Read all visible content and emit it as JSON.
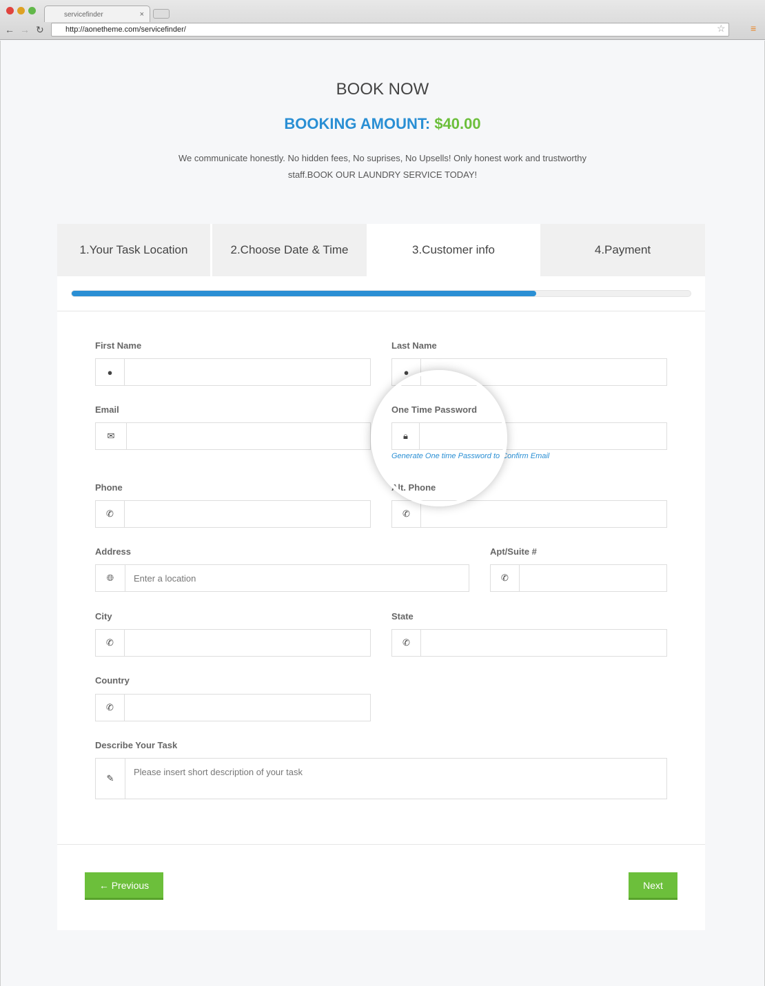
{
  "browser": {
    "tab_title": "servicefinder",
    "url": "http://aonetheme.com/servicefinder/"
  },
  "header": {
    "title": "BOOK NOW",
    "amount_label": "BOOKING AMOUNT:",
    "amount_value": "$40.00",
    "description": "We communicate honestly. No hidden fees, No suprises, No Upsells! Only honest work and trustworthy staff.BOOK OUR LAUNDRY SERVICE TODAY!"
  },
  "steps": [
    {
      "label": "1.Your Task Location"
    },
    {
      "label": "2.Choose Date & Time"
    },
    {
      "label": "3.Customer info",
      "active": true
    },
    {
      "label": "4.Payment"
    }
  ],
  "progress_percent": 75,
  "form": {
    "first_name": "First Name",
    "last_name": "Last Name",
    "email": "Email",
    "otp": "One Time Password",
    "otp_link": "Generate One time Password to Confirm Email",
    "phone": "Phone",
    "alt_phone": "Alt. Phone",
    "address": "Address",
    "address_placeholder": "Enter a location",
    "apt": "Apt/Suite #",
    "city": "City",
    "state": "State",
    "country": "Country",
    "task": "Describe Your Task",
    "task_placeholder": "Please insert short description of your task"
  },
  "buttons": {
    "previous": "Previous",
    "next": "Next"
  },
  "colors": {
    "accent": "#2a8fd4",
    "green": "#6cbf3b"
  }
}
